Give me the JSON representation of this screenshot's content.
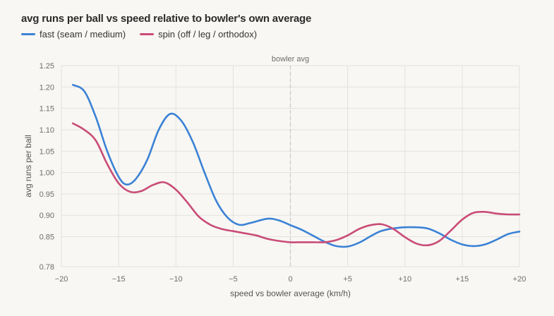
{
  "chart_data": {
    "type": "line",
    "title": "avg runs per ball vs speed relative to bowler's own average",
    "xlabel": "speed vs bowler average (km/h)",
    "ylabel": "avg runs per ball",
    "xlim": [
      -20,
      20
    ],
    "ylim": [
      0.78,
      1.25
    ],
    "x_ticks": [
      -20,
      -15,
      -10,
      -5,
      0,
      5,
      10,
      15,
      20
    ],
    "x_tick_labels": [
      "−20",
      "−15",
      "−10",
      "−5",
      "0",
      "+5",
      "+10",
      "+15",
      "+20"
    ],
    "y_ticks": [
      0.78,
      0.85,
      0.9,
      0.95,
      1.0,
      1.05,
      1.1,
      1.15,
      1.2,
      1.25
    ],
    "y_tick_labels": [
      "0.78",
      "0.85",
      "0.90",
      "0.95",
      "1.00",
      "1.05",
      "1.10",
      "1.15",
      "1.20",
      "1.25"
    ],
    "reference_line": {
      "x": 0,
      "label": "bowler avg"
    },
    "grid": true,
    "legend_position": "top-left",
    "series": [
      {
        "name": "fast (seam / medium)",
        "color": "#3b82d6",
        "points": [
          [
            -19,
            1.205
          ],
          [
            -18,
            1.19
          ],
          [
            -17,
            1.13
          ],
          [
            -16,
            1.05
          ],
          [
            -15,
            0.99
          ],
          [
            -14.3,
            0.972
          ],
          [
            -13.5,
            0.985
          ],
          [
            -12.5,
            1.03
          ],
          [
            -11.5,
            1.1
          ],
          [
            -10.5,
            1.137
          ],
          [
            -9.5,
            1.12
          ],
          [
            -8.5,
            1.07
          ],
          [
            -7.5,
            1.0
          ],
          [
            -6.5,
            0.935
          ],
          [
            -5.5,
            0.895
          ],
          [
            -4.5,
            0.878
          ],
          [
            -3.5,
            0.882
          ],
          [
            -2,
            0.892
          ],
          [
            -1,
            0.888
          ],
          [
            0,
            0.877
          ],
          [
            1,
            0.866
          ],
          [
            2,
            0.852
          ],
          [
            3,
            0.838
          ],
          [
            4,
            0.828
          ],
          [
            5,
            0.827
          ],
          [
            6,
            0.836
          ],
          [
            7,
            0.851
          ],
          [
            8,
            0.864
          ],
          [
            9.5,
            0.871
          ],
          [
            11,
            0.872
          ],
          [
            12,
            0.869
          ],
          [
            13,
            0.858
          ],
          [
            14,
            0.843
          ],
          [
            15,
            0.832
          ],
          [
            16,
            0.828
          ],
          [
            17,
            0.832
          ],
          [
            18,
            0.843
          ],
          [
            19,
            0.856
          ],
          [
            20,
            0.862
          ]
        ]
      },
      {
        "name": "spin (off / leg / orthodox)",
        "color": "#c94c78",
        "points": [
          [
            -19,
            1.115
          ],
          [
            -18,
            1.1
          ],
          [
            -17,
            1.075
          ],
          [
            -16,
            1.02
          ],
          [
            -15,
            0.975
          ],
          [
            -14,
            0.955
          ],
          [
            -13,
            0.957
          ],
          [
            -12,
            0.971
          ],
          [
            -11,
            0.977
          ],
          [
            -10,
            0.96
          ],
          [
            -9,
            0.93
          ],
          [
            -8,
            0.897
          ],
          [
            -7,
            0.878
          ],
          [
            -6,
            0.868
          ],
          [
            -5,
            0.863
          ],
          [
            -4,
            0.858
          ],
          [
            -3,
            0.853
          ],
          [
            -2,
            0.845
          ],
          [
            -1,
            0.84
          ],
          [
            0,
            0.837
          ],
          [
            1,
            0.837
          ],
          [
            2,
            0.837
          ],
          [
            3,
            0.837
          ],
          [
            4,
            0.842
          ],
          [
            5,
            0.853
          ],
          [
            6,
            0.868
          ],
          [
            7,
            0.877
          ],
          [
            8,
            0.879
          ],
          [
            9,
            0.868
          ],
          [
            10,
            0.849
          ],
          [
            11,
            0.834
          ],
          [
            12,
            0.83
          ],
          [
            13,
            0.84
          ],
          [
            14,
            0.864
          ],
          [
            15,
            0.89
          ],
          [
            16,
            0.906
          ],
          [
            17,
            0.908
          ],
          [
            18,
            0.904
          ],
          [
            19,
            0.902
          ],
          [
            20,
            0.902
          ]
        ]
      }
    ]
  }
}
